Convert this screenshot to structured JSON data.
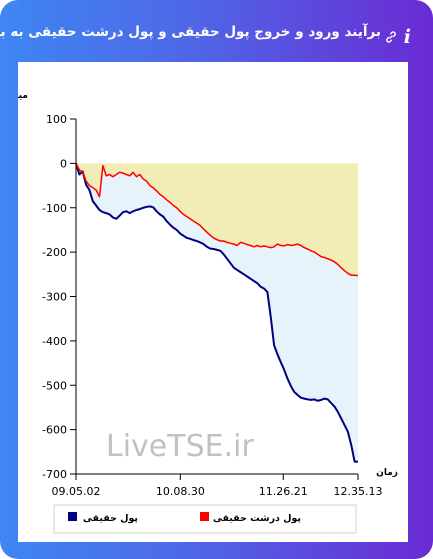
{
  "header": {
    "title": "برآیند ورود و خروج پول حقیقی و پول درشت حقیقی به بازار",
    "info_icon": "i"
  },
  "chart_data": {
    "type": "line",
    "ylabel": "میلیارد تومان",
    "xlabel": "زمان",
    "ylim": [
      -700,
      100
    ],
    "yticks": [
      "100",
      "0",
      "-100",
      "-200",
      "-300",
      "-400",
      "-500",
      "-600",
      "-700"
    ],
    "xticks": [
      "09.05.02",
      "10.08.30",
      "11.26.21",
      "12.35.13"
    ],
    "watermark": "LiveTSE.ir",
    "grid": false,
    "legend": "bottom",
    "series": [
      {
        "name": "پول حقیقی",
        "color": "#000080",
        "values": [
          0,
          -25,
          -18,
          -48,
          -60,
          -85,
          -95,
          -105,
          -110,
          -112,
          -115,
          -122,
          -125,
          -118,
          -110,
          -108,
          -112,
          -108,
          -105,
          -103,
          -100,
          -98,
          -97,
          -99,
          -108,
          -115,
          -120,
          -130,
          -138,
          -145,
          -150,
          -158,
          -163,
          -168,
          -170,
          -173,
          -175,
          -178,
          -182,
          -188,
          -192,
          -193,
          -195,
          -197,
          -205,
          -215,
          -225,
          -235,
          -240,
          -245,
          -250,
          -255,
          -260,
          -265,
          -270,
          -278,
          -282,
          -290,
          -345,
          -410,
          -430,
          -448,
          -465,
          -485,
          -502,
          -515,
          -522,
          -528,
          -530,
          -532,
          -533,
          -532,
          -535,
          -533,
          -530,
          -532,
          -540,
          -548,
          -560,
          -575,
          -590,
          -605,
          -635,
          -672,
          -672
        ]
      },
      {
        "name": "پول درشت حقیقی",
        "color": "#ff0000",
        "values": [
          0,
          -15,
          -20,
          -40,
          -50,
          -55,
          -60,
          -75,
          -5,
          -28,
          -25,
          -30,
          -25,
          -20,
          -22,
          -25,
          -28,
          -20,
          -30,
          -25,
          -35,
          -40,
          -50,
          -55,
          -62,
          -70,
          -75,
          -82,
          -88,
          -95,
          -100,
          -108,
          -115,
          -120,
          -125,
          -130,
          -135,
          -140,
          -148,
          -155,
          -162,
          -168,
          -172,
          -175,
          -175,
          -178,
          -180,
          -182,
          -185,
          -178,
          -180,
          -183,
          -185,
          -188,
          -185,
          -188,
          -186,
          -188,
          -190,
          -188,
          -182,
          -185,
          -186,
          -183,
          -185,
          -184,
          -182,
          -185,
          -190,
          -193,
          -197,
          -200,
          -205,
          -210,
          -212,
          -215,
          -218,
          -222,
          -228,
          -235,
          -242,
          -248,
          -252,
          -252,
          -253
        ]
      }
    ]
  }
}
